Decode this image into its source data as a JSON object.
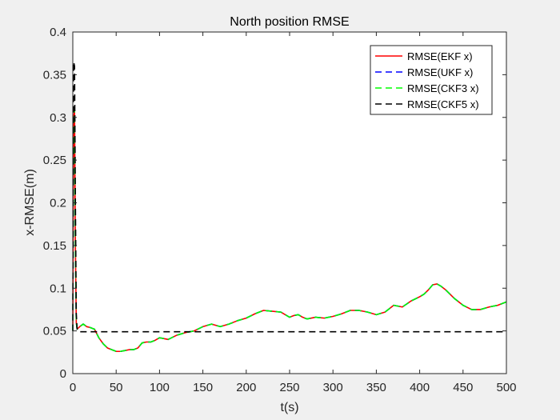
{
  "chart_data": {
    "type": "line",
    "title": "North position RMSE",
    "xlabel": "t(s)",
    "ylabel": "x-RMSE(m)",
    "xlim": [
      0,
      500
    ],
    "ylim": [
      0,
      0.4
    ],
    "xticks": [
      0,
      50,
      100,
      150,
      200,
      250,
      300,
      350,
      400,
      450,
      500
    ],
    "yticks": [
      0,
      0.05,
      0.1,
      0.15,
      0.2,
      0.25,
      0.3,
      0.35,
      0.4
    ],
    "grid": false,
    "legend_position": "top-right",
    "series": [
      {
        "name": "RMSE(EKF x)",
        "color": "#ff0000",
        "dash": "solid",
        "x": [
          0,
          1,
          2,
          3,
          4,
          5,
          8,
          12,
          16,
          20,
          25,
          30,
          35,
          40,
          45,
          50,
          55,
          60,
          65,
          70,
          75,
          80,
          85,
          90,
          95,
          100,
          110,
          120,
          130,
          140,
          150,
          160,
          170,
          180,
          190,
          200,
          210,
          220,
          230,
          240,
          250,
          255,
          260,
          265,
          270,
          280,
          290,
          300,
          310,
          320,
          330,
          340,
          350,
          360,
          370,
          380,
          390,
          400,
          405,
          410,
          415,
          420,
          425,
          430,
          440,
          450,
          460,
          470,
          480,
          490,
          500
        ],
        "y": [
          0.05,
          0.3,
          0.31,
          0.15,
          0.06,
          0.052,
          0.055,
          0.058,
          0.055,
          0.054,
          0.052,
          0.042,
          0.035,
          0.03,
          0.028,
          0.026,
          0.026,
          0.027,
          0.028,
          0.028,
          0.03,
          0.036,
          0.037,
          0.037,
          0.039,
          0.042,
          0.04,
          0.045,
          0.048,
          0.05,
          0.055,
          0.058,
          0.055,
          0.058,
          0.062,
          0.065,
          0.07,
          0.074,
          0.073,
          0.072,
          0.066,
          0.068,
          0.069,
          0.066,
          0.064,
          0.066,
          0.065,
          0.067,
          0.07,
          0.074,
          0.074,
          0.072,
          0.069,
          0.072,
          0.08,
          0.078,
          0.085,
          0.09,
          0.093,
          0.098,
          0.104,
          0.105,
          0.102,
          0.098,
          0.088,
          0.08,
          0.075,
          0.075,
          0.078,
          0.08,
          0.084
        ]
      },
      {
        "name": "RMSE(UKF x)",
        "color": "#0000ff",
        "dash": "dashed",
        "x": [
          0,
          1,
          2,
          3,
          4,
          5,
          8,
          12,
          16,
          20,
          25,
          30,
          35,
          40,
          45,
          50,
          55,
          60,
          65,
          70,
          75,
          80,
          85,
          90,
          95,
          100,
          110,
          120,
          130,
          140,
          150,
          160,
          170,
          180,
          190,
          200,
          210,
          220,
          230,
          240,
          250,
          255,
          260,
          265,
          270,
          280,
          290,
          300,
          310,
          320,
          330,
          340,
          350,
          360,
          370,
          380,
          390,
          400,
          405,
          410,
          415,
          420,
          425,
          430,
          440,
          450,
          460,
          470,
          480,
          490,
          500
        ],
        "y": [
          0.05,
          0.3,
          0.31,
          0.15,
          0.06,
          0.052,
          0.055,
          0.058,
          0.055,
          0.054,
          0.052,
          0.042,
          0.035,
          0.03,
          0.028,
          0.026,
          0.026,
          0.027,
          0.028,
          0.028,
          0.03,
          0.036,
          0.037,
          0.037,
          0.039,
          0.042,
          0.04,
          0.045,
          0.048,
          0.05,
          0.055,
          0.058,
          0.055,
          0.058,
          0.062,
          0.065,
          0.07,
          0.074,
          0.073,
          0.072,
          0.066,
          0.068,
          0.069,
          0.066,
          0.064,
          0.066,
          0.065,
          0.067,
          0.07,
          0.074,
          0.074,
          0.072,
          0.069,
          0.072,
          0.08,
          0.078,
          0.085,
          0.09,
          0.093,
          0.098,
          0.104,
          0.105,
          0.102,
          0.098,
          0.088,
          0.08,
          0.075,
          0.075,
          0.078,
          0.08,
          0.084
        ]
      },
      {
        "name": "RMSE(CKF3 x)",
        "color": "#00ff00",
        "dash": "dashed",
        "x": [
          0,
          1,
          2,
          3,
          4,
          5,
          8,
          12,
          16,
          20,
          25,
          30,
          35,
          40,
          45,
          50,
          55,
          60,
          65,
          70,
          75,
          80,
          85,
          90,
          95,
          100,
          110,
          120,
          130,
          140,
          150,
          160,
          170,
          180,
          190,
          200,
          210,
          220,
          230,
          240,
          250,
          255,
          260,
          265,
          270,
          280,
          290,
          300,
          310,
          320,
          330,
          340,
          350,
          360,
          370,
          380,
          390,
          400,
          405,
          410,
          415,
          420,
          425,
          430,
          440,
          450,
          460,
          470,
          480,
          490,
          500
        ],
        "y": [
          0.05,
          0.3,
          0.31,
          0.15,
          0.06,
          0.052,
          0.055,
          0.058,
          0.055,
          0.054,
          0.052,
          0.042,
          0.035,
          0.03,
          0.028,
          0.026,
          0.026,
          0.027,
          0.028,
          0.028,
          0.03,
          0.036,
          0.037,
          0.037,
          0.039,
          0.042,
          0.04,
          0.045,
          0.048,
          0.05,
          0.055,
          0.058,
          0.055,
          0.058,
          0.062,
          0.065,
          0.07,
          0.074,
          0.073,
          0.072,
          0.066,
          0.068,
          0.069,
          0.066,
          0.064,
          0.066,
          0.065,
          0.067,
          0.07,
          0.074,
          0.074,
          0.072,
          0.069,
          0.072,
          0.08,
          0.078,
          0.085,
          0.09,
          0.093,
          0.098,
          0.104,
          0.105,
          0.102,
          0.098,
          0.088,
          0.08,
          0.075,
          0.075,
          0.078,
          0.08,
          0.084
        ]
      },
      {
        "name": "RMSE(CKF5 x)",
        "color": "#000000",
        "dash": "dashed",
        "x": [
          0,
          1,
          2,
          3,
          4,
          5,
          6,
          8,
          10,
          500
        ],
        "y": [
          0.05,
          0.365,
          0.36,
          0.2,
          0.07,
          0.052,
          0.05,
          0.049,
          0.049,
          0.049
        ]
      }
    ]
  }
}
